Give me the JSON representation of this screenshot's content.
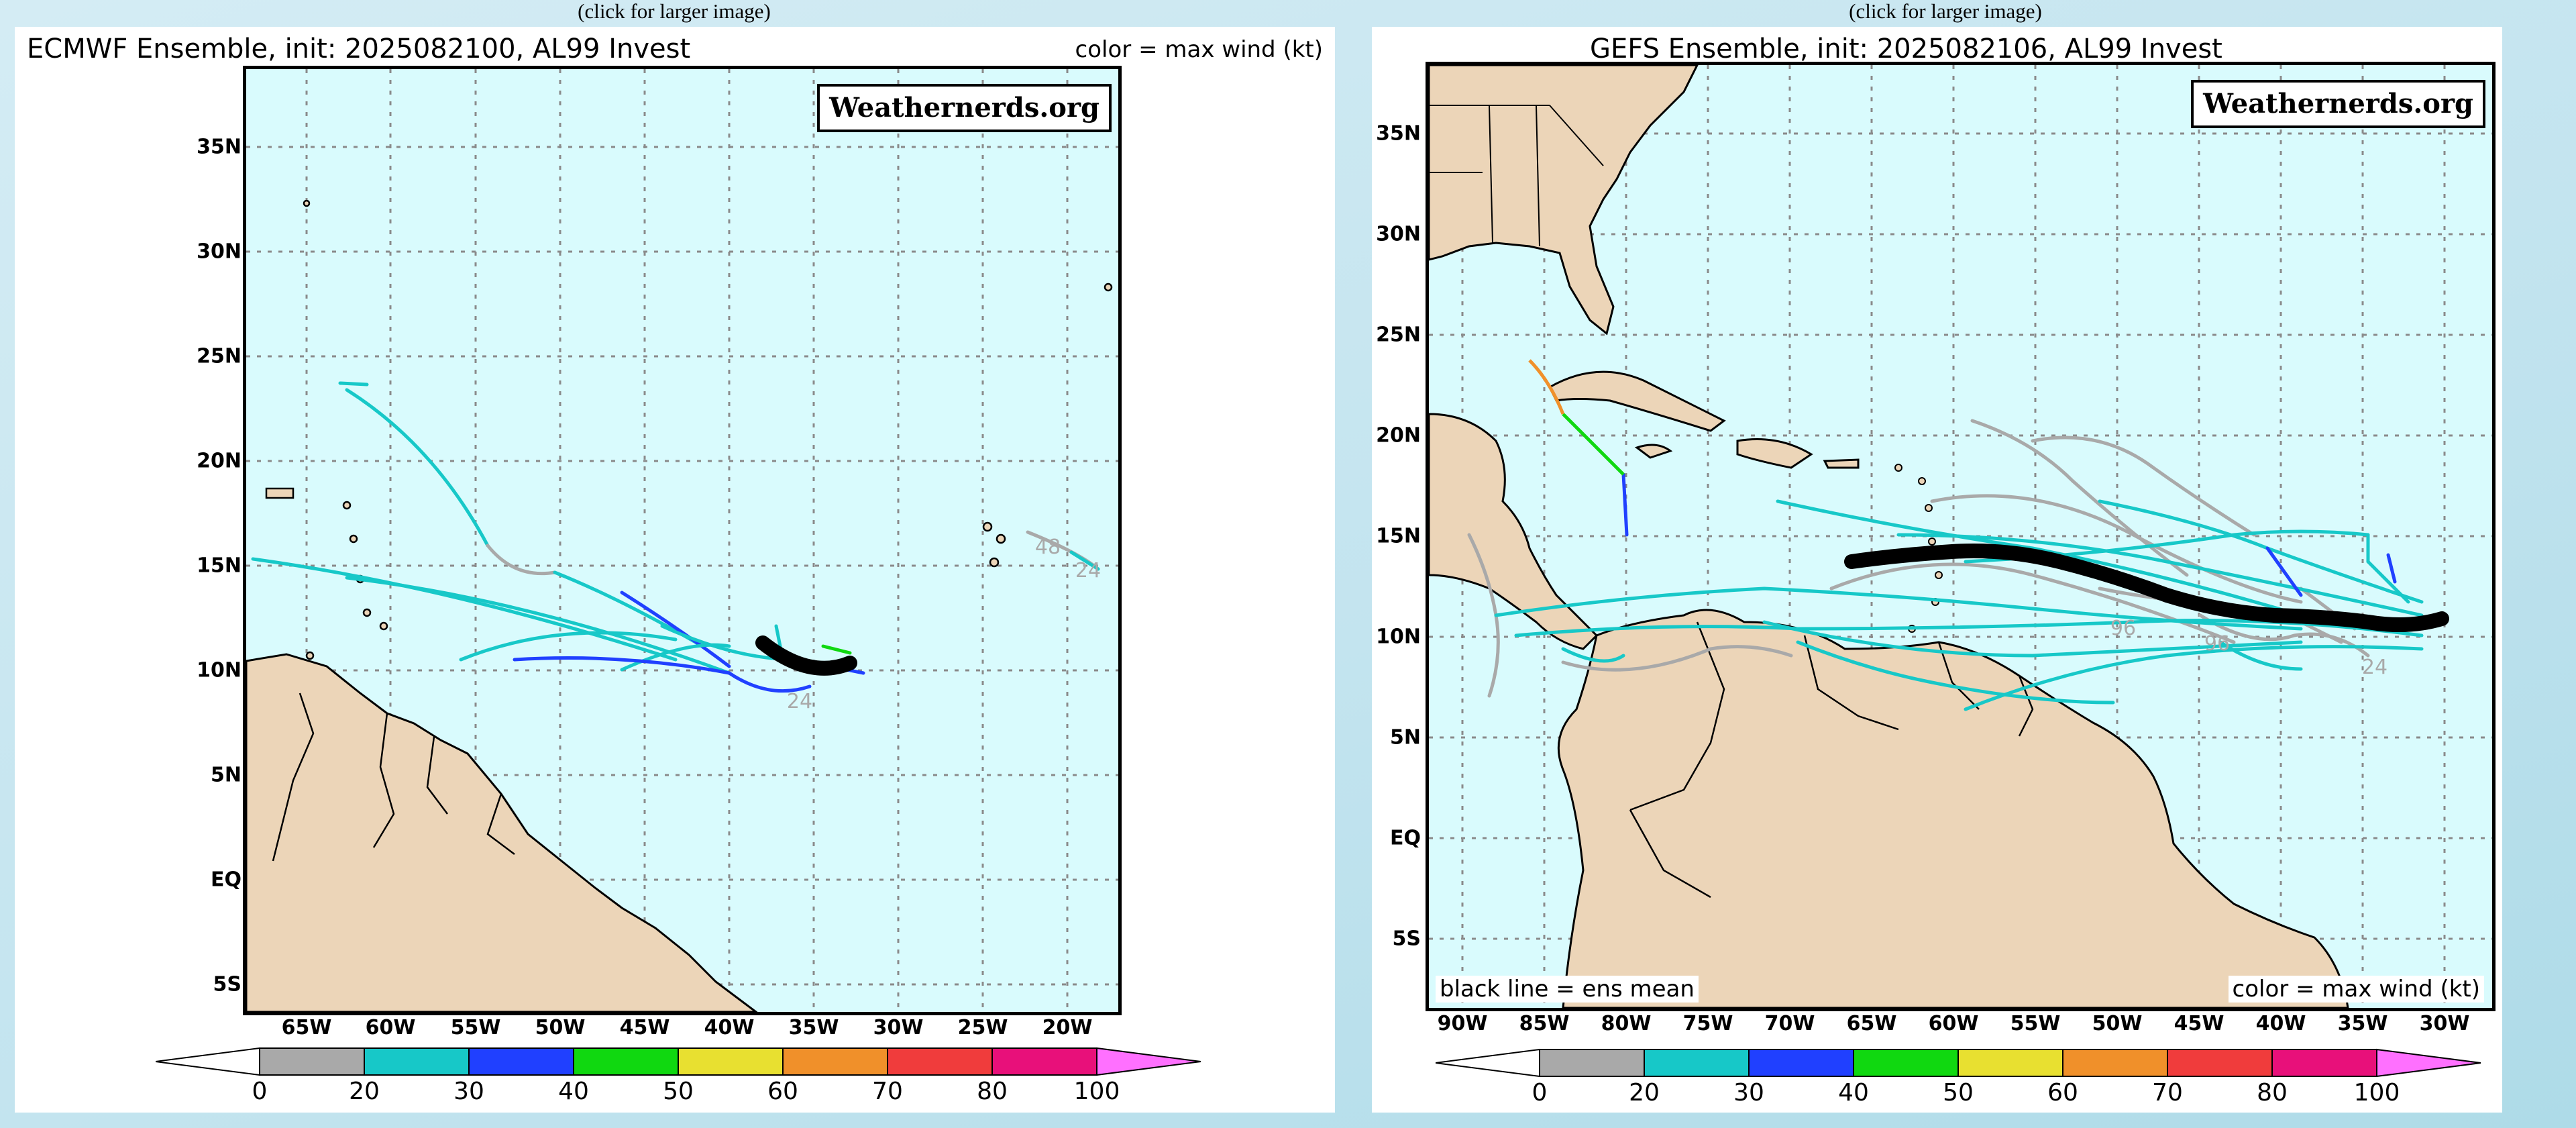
{
  "captions": [
    "(click for larger image)",
    "(click for larger image)"
  ],
  "left": {
    "title": "ECMWF Ensemble, init: 2025082100, AL99 Invest",
    "legend": "color = max wind (kt)",
    "brand": "Weathernerds.org",
    "lat_labels": [
      "35N",
      "30N",
      "25N",
      "20N",
      "15N",
      "10N",
      "5N",
      "EQ",
      "5S"
    ],
    "lon_labels": [
      "65W",
      "60W",
      "55W",
      "50W",
      "45W",
      "40W",
      "35W",
      "30W",
      "25W",
      "20W"
    ],
    "time_labels": [
      "48",
      "24",
      "24"
    ]
  },
  "right": {
    "title": "GEFS Ensemble, init: 2025082106, AL99 Invest",
    "legend": "color = max wind (kt)",
    "brand": "Weathernerds.org",
    "note": "black line = ens mean",
    "lat_labels": [
      "35N",
      "30N",
      "25N",
      "20N",
      "15N",
      "10N",
      "5N",
      "EQ",
      "5S"
    ],
    "lon_labels": [
      "90W",
      "85W",
      "80W",
      "75W",
      "70W",
      "65W",
      "60W",
      "55W",
      "50W",
      "45W",
      "40W",
      "35W",
      "30W"
    ],
    "time_labels": [
      "96",
      "96",
      "24"
    ]
  },
  "colorbar": {
    "ticks": [
      "0",
      "20",
      "30",
      "40",
      "50",
      "60",
      "70",
      "80",
      "100"
    ],
    "colors": [
      "#a9a9a9",
      "#17c8c8",
      "#2040ff",
      "#10d810",
      "#e8e030",
      "#f0902a",
      "#f03c3c",
      "#e8107a"
    ],
    "under_color": "#ffffff",
    "over_color": "#ff70ff"
  },
  "colors": {
    "ocean": "#d9fbfd",
    "land": "#ecd5b8",
    "mean_track": "#000000",
    "gray": "#a9a9a9",
    "cyan": "#17c8c8",
    "blue": "#2040ff",
    "green": "#10d810",
    "orange": "#f0902a"
  }
}
